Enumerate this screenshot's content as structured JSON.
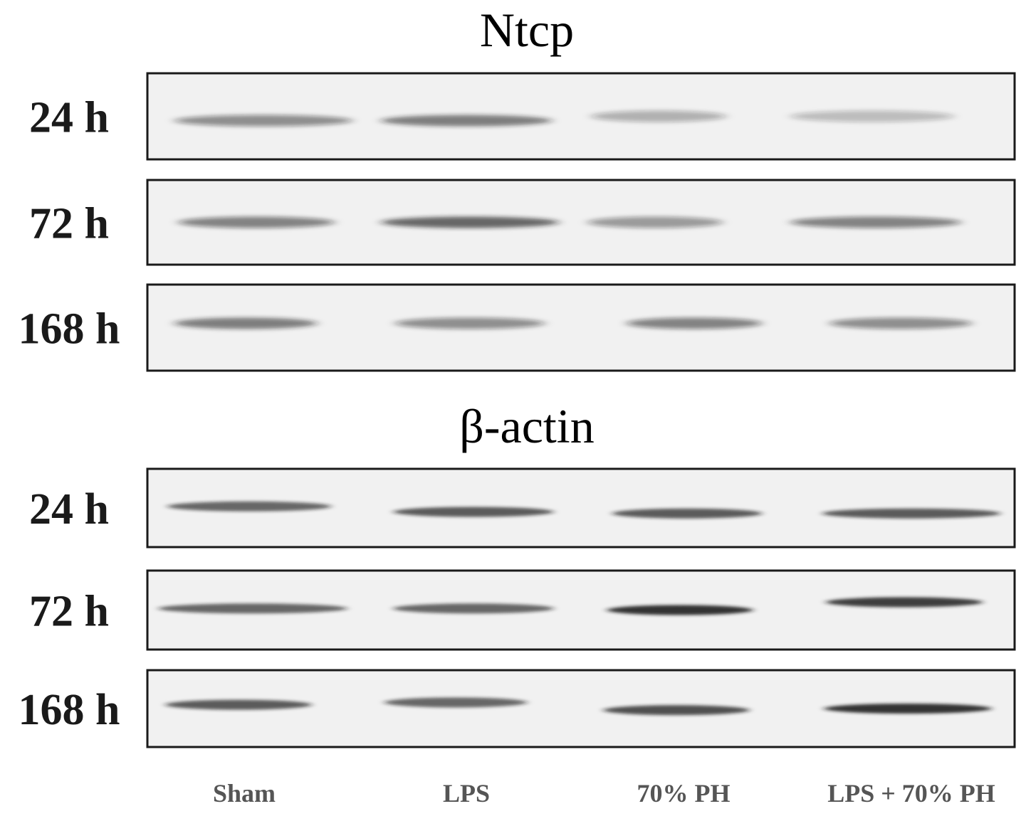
{
  "panels": [
    {
      "title": "Ntcp",
      "rows": [
        "24 h",
        "72 h",
        "168 h"
      ]
    },
    {
      "title": "β-actin",
      "rows": [
        "24 h",
        "72 h",
        "168 h"
      ]
    }
  ],
  "lanes": [
    "Sham",
    "LPS",
    "70% PH",
    "LPS + 70% PH"
  ]
}
